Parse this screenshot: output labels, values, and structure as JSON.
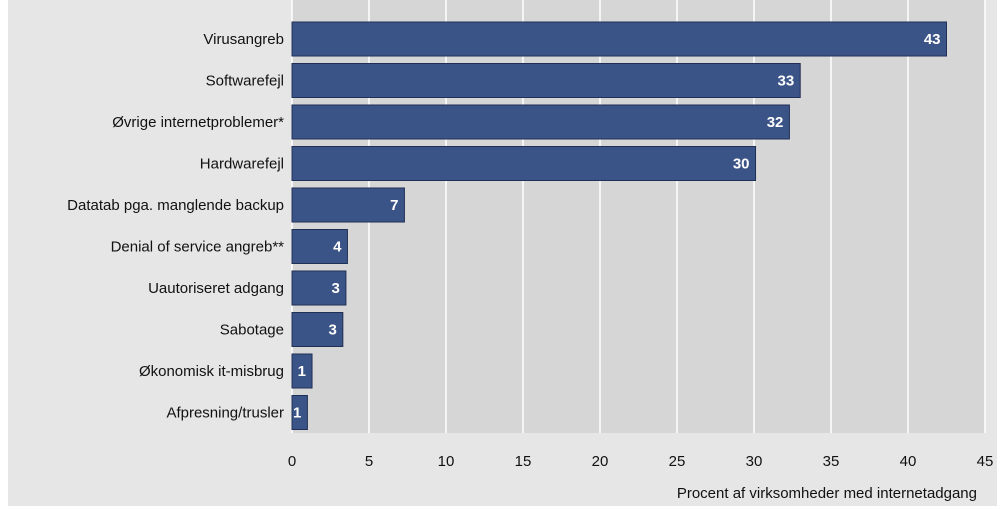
{
  "chart_data": {
    "type": "bar",
    "orientation": "horizontal",
    "categories": [
      "Virusangreb",
      "Softwarefejl",
      "Øvrige internetproblemer*",
      "Hardwarefejl",
      "Datatab pga. manglende backup",
      "Denial of service angreb**",
      "Uautoriseret adgang",
      "Sabotage",
      "Økonomisk it-misbrug",
      "Afpresning/trusler"
    ],
    "values": [
      42.5,
      33,
      32.3,
      30.1,
      7.3,
      3.6,
      3.5,
      3.3,
      1.3,
      1.0
    ],
    "data_labels": [
      "43",
      "33",
      "32",
      "30",
      "7",
      "4",
      "3",
      "3",
      "1",
      "1"
    ],
    "xticks": [
      "0",
      "5",
      "10",
      "15",
      "20",
      "25",
      "30",
      "35",
      "40",
      "45"
    ],
    "xlim": [
      0,
      45
    ],
    "xlabel": "Procent af virksomheder med internetadgang",
    "grid": true,
    "colors": {
      "bar": "#3b5487",
      "bar_edge": "#1f2f55",
      "plot_bg": "#d6d6d6",
      "panel_bg": "#e6e6e6",
      "grid": "#ffffff"
    }
  }
}
